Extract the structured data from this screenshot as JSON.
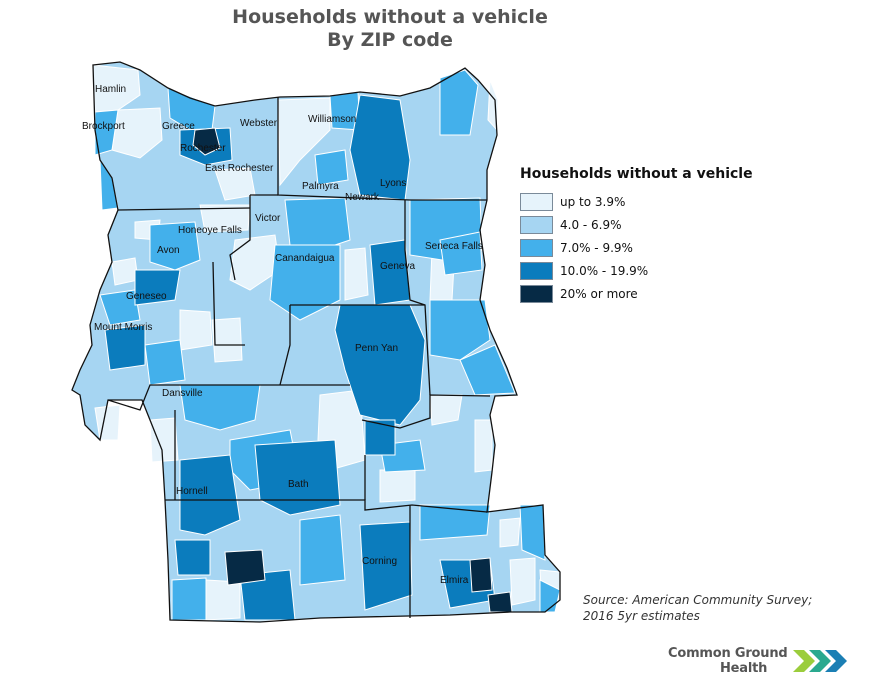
{
  "title_line1": "Households without a vehicle",
  "title_line2": "By ZIP code",
  "legend": {
    "title": "Households without a vehicle",
    "items": [
      {
        "label": "up to 3.9%",
        "color": "#e6f3fb"
      },
      {
        "label": "4.0 - 6.9%",
        "color": "#a6d5f2"
      },
      {
        "label": "7.0% - 9.9%",
        "color": "#43b0eb"
      },
      {
        "label": "10.0% - 19.9%",
        "color": "#0b7cbd"
      },
      {
        "label": "20% or more",
        "color": "#062a45"
      }
    ]
  },
  "cities": [
    "Hamlin",
    "Brockport",
    "Greece",
    "Rochester",
    "Webster",
    "Williamson",
    "East Rochester",
    "Palmyra",
    "Newark",
    "Lyons",
    "Victor",
    "Honeoye Falls",
    "Seneca Falls",
    "Avon",
    "Canandaigua",
    "Geneva",
    "Geneseo",
    "Mount Morris",
    "Penn Yan",
    "Dansville",
    "Hornell",
    "Bath",
    "Corning",
    "Elmira"
  ],
  "source": "Source: American Community Survey; 2016 5yr estimates",
  "logo": {
    "line1": "Common Ground",
    "line2": "Health",
    "colors": [
      "#9bcd3c",
      "#2aa98f",
      "#1b7fb4"
    ]
  }
}
